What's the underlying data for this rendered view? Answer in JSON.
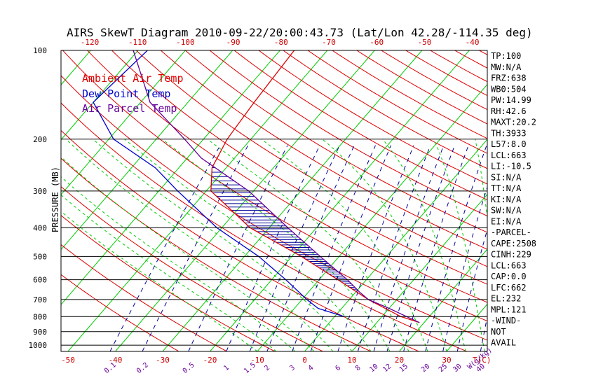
{
  "chart_data": {
    "type": "line",
    "title": "AIRS SkewT Diagram 2010-09-22/20:00:43.73 (Lat/Lon 42.28/-114.35 deg)",
    "ylabel": "PRESSURE (MB)",
    "xlabel_right": "T(C)",
    "mixing_ratio_unit": "W(g/kg)",
    "y_scale": "log",
    "ylim": [
      1050,
      100
    ],
    "pressure_ticks": [
      100,
      200,
      300,
      400,
      500,
      600,
      700,
      800,
      900,
      1000
    ],
    "bottom_temp_ticks": [
      -50,
      -40,
      -30,
      -20,
      -10,
      0,
      10,
      20,
      30
    ],
    "top_temp_ticks": [
      -120,
      -110,
      -100,
      -90,
      -80,
      -70,
      -60,
      -50,
      -40
    ],
    "mixing_ratio_ticks": [
      "0.1",
      "0.2",
      "0.5",
      "1",
      "1.5",
      "2",
      "3",
      "4",
      "6",
      "8",
      "10",
      "12",
      "15",
      "20",
      "25",
      "30",
      "40"
    ],
    "legend": [
      {
        "label": "Ambient Air Temp",
        "color": "#dd0000"
      },
      {
        "label": "Dew Point Temp",
        "color": "#0000cc"
      },
      {
        "label": "Air Parcel Temp",
        "color": "#660099"
      }
    ],
    "series": [
      {
        "name": "Ambient Air Temp",
        "color": "#dd0000",
        "points": [
          [
            100,
            -57
          ],
          [
            150,
            -56
          ],
          [
            200,
            -55
          ],
          [
            250,
            -53
          ],
          [
            300,
            -49
          ],
          [
            400,
            -34
          ],
          [
            500,
            -18
          ],
          [
            600,
            -6
          ],
          [
            700,
            4
          ],
          [
            800,
            14
          ],
          [
            838,
            19
          ]
        ]
      },
      {
        "name": "Dew Point Temp",
        "color": "#0000cc",
        "points": [
          [
            100,
            -88
          ],
          [
            150,
            -90
          ],
          [
            200,
            -79
          ],
          [
            250,
            -65
          ],
          [
            300,
            -56
          ],
          [
            400,
            -41
          ],
          [
            500,
            -27
          ],
          [
            600,
            -17
          ],
          [
            700,
            -9
          ],
          [
            750,
            -5
          ],
          [
            800,
            2
          ]
        ]
      },
      {
        "name": "Air Parcel Temp",
        "color": "#660099",
        "points": [
          [
            100,
            -91
          ],
          [
            150,
            -78
          ],
          [
            200,
            -64
          ],
          [
            232,
            -57
          ],
          [
            300,
            -41
          ],
          [
            400,
            -26
          ],
          [
            500,
            -14
          ],
          [
            600,
            -4
          ],
          [
            663,
            1
          ],
          [
            700,
            4
          ],
          [
            750,
            10
          ],
          [
            838,
            19
          ]
        ]
      }
    ],
    "cape_region": {
      "p_top": 232,
      "p_bottom": 662,
      "color": "#000099"
    }
  },
  "indices": [
    "TP:100",
    "MW:N/A",
    "FRZ:638",
    "WB0:504",
    "PW:14.99",
    "RH:42.6",
    "MAXT:20.2",
    "TH:3933",
    "L57:8.0",
    "LCL:663",
    "LI:-10.5",
    "SI:N/A",
    "TT:N/A",
    "KI:N/A",
    "SW:N/A",
    "EI:N/A",
    "-PARCEL-",
    "CAPE:2508",
    "CINH:229",
    "LCL:663",
    "CAP:0.0",
    "LFC:662",
    "EL:232",
    "MPL:121",
    "-WIND-",
    "NOT",
    "AVAIL"
  ],
  "colors": {
    "dry_adiabat": "#dd0000",
    "isotherm": "#00cc00",
    "moist_adiabat": "#00cc00",
    "mixing_ratio": "#000099",
    "isobar": "#000000"
  }
}
